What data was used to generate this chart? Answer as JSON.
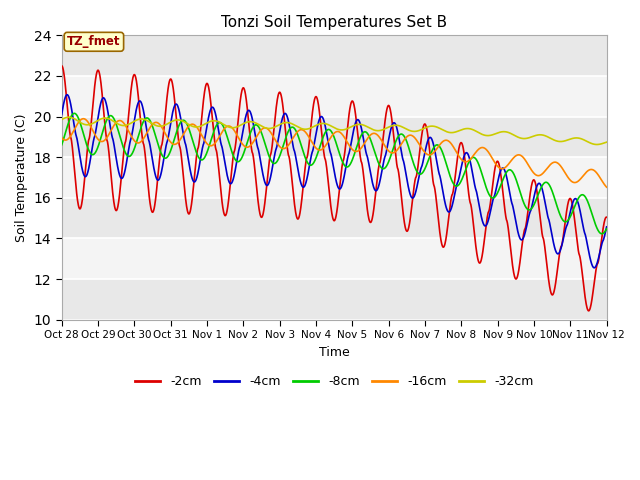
{
  "title": "Tonzi Soil Temperatures Set B",
  "xlabel": "Time",
  "ylabel": "Soil Temperature (C)",
  "ylim": [
    10,
    24
  ],
  "yticks": [
    10,
    12,
    14,
    16,
    18,
    20,
    22,
    24
  ],
  "series": {
    "-2cm": {
      "color": "#dd0000",
      "lw": 1.2
    },
    "-4cm": {
      "color": "#0000cc",
      "lw": 1.2
    },
    "-8cm": {
      "color": "#00cc00",
      "lw": 1.2
    },
    "-16cm": {
      "color": "#ff8800",
      "lw": 1.2
    },
    "-32cm": {
      "color": "#cccc00",
      "lw": 1.2
    }
  },
  "legend_order": [
    "-2cm",
    "-4cm",
    "-8cm",
    "-16cm",
    "-32cm"
  ],
  "annotation_text": "TZ_fmet",
  "annotation_color": "#990000",
  "annotation_bg": "#ffffcc",
  "annotation_border": "#996600",
  "background_color": "#ffffff",
  "plot_bg": "#f0f0f0",
  "xtick_labels": [
    "Oct 28",
    "Oct 29",
    "Oct 30",
    "Oct 31",
    "Nov 1",
    "Nov 2",
    "Nov 3",
    "Nov 4",
    "Nov 5",
    "Nov 6",
    "Nov 7",
    "Nov 8",
    "Nov 9",
    "Nov 10",
    "Nov 11",
    "Nov 12"
  ],
  "n_points": 2000
}
